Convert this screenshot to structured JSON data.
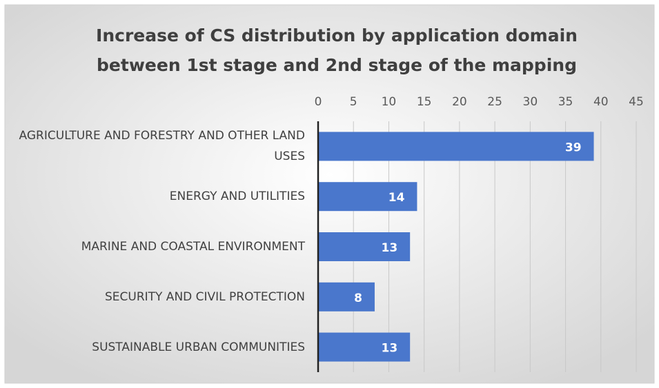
{
  "chart_data": {
    "type": "bar",
    "orientation": "horizontal",
    "title": [
      "Increase of CS distribution by application domain",
      "between 1st stage and 2nd stage of the mapping"
    ],
    "categories": [
      "AGRICULTURE AND FORESTRY AND OTHER LAND USES",
      "ENERGY AND UTILITIES",
      "MARINE AND COASTAL ENVIRONMENT",
      "SECURITY AND CIVIL PROTECTION",
      "SUSTAINABLE URBAN COMMUNITIES"
    ],
    "values": [
      39,
      14,
      13,
      8,
      13
    ],
    "color": "#4a77cc",
    "xlim": [
      0,
      45
    ],
    "xticks": [
      0,
      5,
      10,
      15,
      20,
      25,
      30,
      35,
      40,
      45
    ],
    "grid": true
  }
}
